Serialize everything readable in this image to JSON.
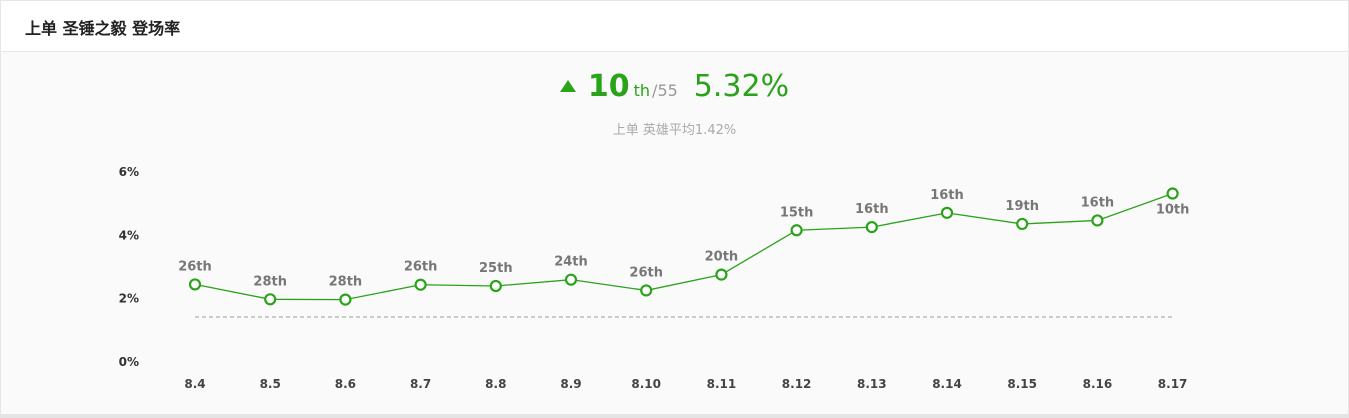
{
  "header": {
    "title": "上单 圣锤之毅 登场率"
  },
  "summary": {
    "trend": "up",
    "rank": "10",
    "rank_suffix": "th",
    "total": "/55",
    "rate": "5.32%",
    "average_text": "上单 英雄平均1.42%"
  },
  "colors": {
    "accent": "#2aa31a",
    "average_line": "#999999"
  },
  "chart_data": {
    "type": "line",
    "title": "",
    "xlabel": "",
    "ylabel": "",
    "ylim": [
      0,
      6
    ],
    "yticks": [
      "0%",
      "2%",
      "4%",
      "6%"
    ],
    "categories": [
      "8.4",
      "8.5",
      "8.6",
      "8.7",
      "8.8",
      "8.9",
      "8.10",
      "8.11",
      "8.12",
      "8.13",
      "8.14",
      "8.15",
      "8.16",
      "8.17"
    ],
    "series": [
      {
        "values": [
          2.45,
          1.98,
          1.97,
          2.44,
          2.4,
          2.6,
          2.26,
          2.76,
          4.16,
          4.26,
          4.71,
          4.36,
          4.47,
          5.32
        ],
        "labels": [
          "26th",
          "28th",
          "28th",
          "26th",
          "25th",
          "24th",
          "26th",
          "20th",
          "15th",
          "16th",
          "16th",
          "19th",
          "16th",
          "10th"
        ]
      }
    ],
    "average": 1.42,
    "grid": false
  }
}
